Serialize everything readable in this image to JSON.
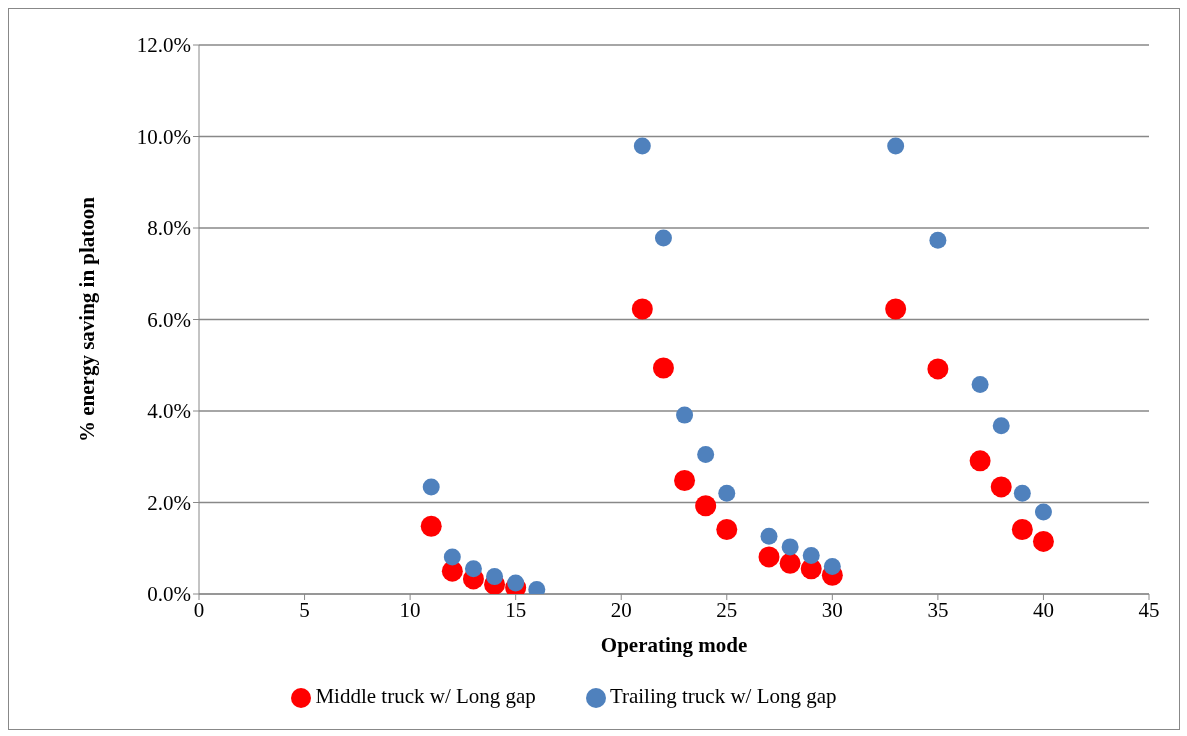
{
  "chart_data": {
    "type": "scatter",
    "xlabel": "Operating mode",
    "ylabel": "% energy saving in platoon",
    "x": [
      11,
      12,
      13,
      14,
      15,
      16,
      21,
      22,
      23,
      24,
      25,
      27,
      28,
      29,
      30,
      33,
      35,
      37,
      38,
      39,
      40
    ],
    "series": [
      {
        "name": "Middle truck w/ Long gap",
        "color": "#ff0000",
        "values": [
          1.48,
          0.5,
          0.33,
          0.21,
          0.14,
          null,
          6.23,
          4.94,
          2.48,
          1.93,
          1.41,
          0.81,
          0.67,
          0.55,
          0.41,
          6.23,
          4.92,
          2.91,
          2.34,
          1.41,
          1.15
        ]
      },
      {
        "name": "Trailing truck w/ Long gap",
        "color": "#4f81bd",
        "values": [
          2.34,
          0.81,
          0.55,
          0.38,
          0.24,
          0.1,
          9.79,
          7.78,
          3.91,
          3.05,
          2.2,
          1.26,
          1.03,
          0.84,
          0.6,
          9.79,
          7.73,
          4.58,
          3.68,
          2.2,
          1.79
        ]
      }
    ],
    "xlim": [
      0,
      45
    ],
    "xticks": [
      0,
      5,
      10,
      15,
      20,
      25,
      30,
      35,
      40,
      45
    ],
    "ylim": [
      0,
      12
    ],
    "yticks": [
      {
        "value": 0,
        "label": "0.0%"
      },
      {
        "value": 2,
        "label": "2.0%"
      },
      {
        "value": 4,
        "label": "4.0%"
      },
      {
        "value": 6,
        "label": "6.0%"
      },
      {
        "value": 8,
        "label": "8.0%"
      },
      {
        "value": 10,
        "label": "10.0%"
      },
      {
        "value": 12,
        "label": "12.0%"
      }
    ],
    "grid": "y",
    "legend": "bottom",
    "marker": "circle"
  }
}
